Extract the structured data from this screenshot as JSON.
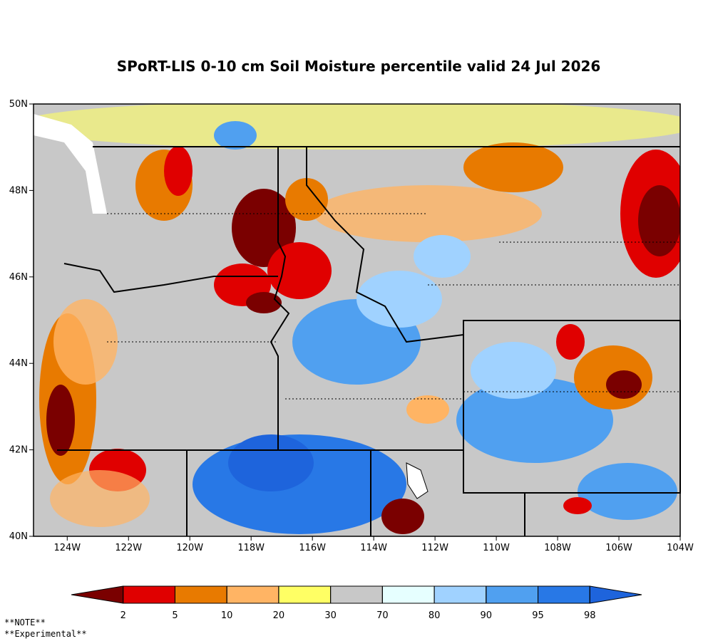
{
  "title": "SPoRT-LIS 0-10 cm Soil Moisture percentile valid 24 Jul 2026",
  "map": {
    "lon_range": [
      -125.1,
      -104
    ],
    "lat_range": [
      40,
      50
    ],
    "lon_ticks": [
      {
        "value": -124,
        "label": "124W"
      },
      {
        "value": -122,
        "label": "122W"
      },
      {
        "value": -120,
        "label": "120W"
      },
      {
        "value": -118,
        "label": "118W"
      },
      {
        "value": -116,
        "label": "116W"
      },
      {
        "value": -114,
        "label": "114W"
      },
      {
        "value": -112,
        "label": "112W"
      },
      {
        "value": -110,
        "label": "110W"
      },
      {
        "value": -108,
        "label": "108W"
      },
      {
        "value": -106,
        "label": "106W"
      },
      {
        "value": -104,
        "label": "104W"
      }
    ],
    "lat_ticks": [
      {
        "value": 40,
        "label": "40N"
      },
      {
        "value": 42,
        "label": "42N"
      },
      {
        "value": 44,
        "label": "44N"
      },
      {
        "value": 46,
        "label": "46N"
      },
      {
        "value": 48,
        "label": "48N"
      },
      {
        "value": 50,
        "label": "50N"
      }
    ]
  },
  "colorbar": {
    "ticks": [
      2,
      5,
      10,
      20,
      30,
      70,
      80,
      90,
      95,
      98
    ],
    "colors": [
      "#7a0000",
      "#e00000",
      "#e87a00",
      "#ffb464",
      "#ffff64",
      "#c8c8c8",
      "#e6ffff",
      "#a0d2ff",
      "#50a0f0",
      "#2878e6",
      "#1e64dc"
    ]
  },
  "notes": [
    "**NOTE**",
    "**Experimental**"
  ]
}
